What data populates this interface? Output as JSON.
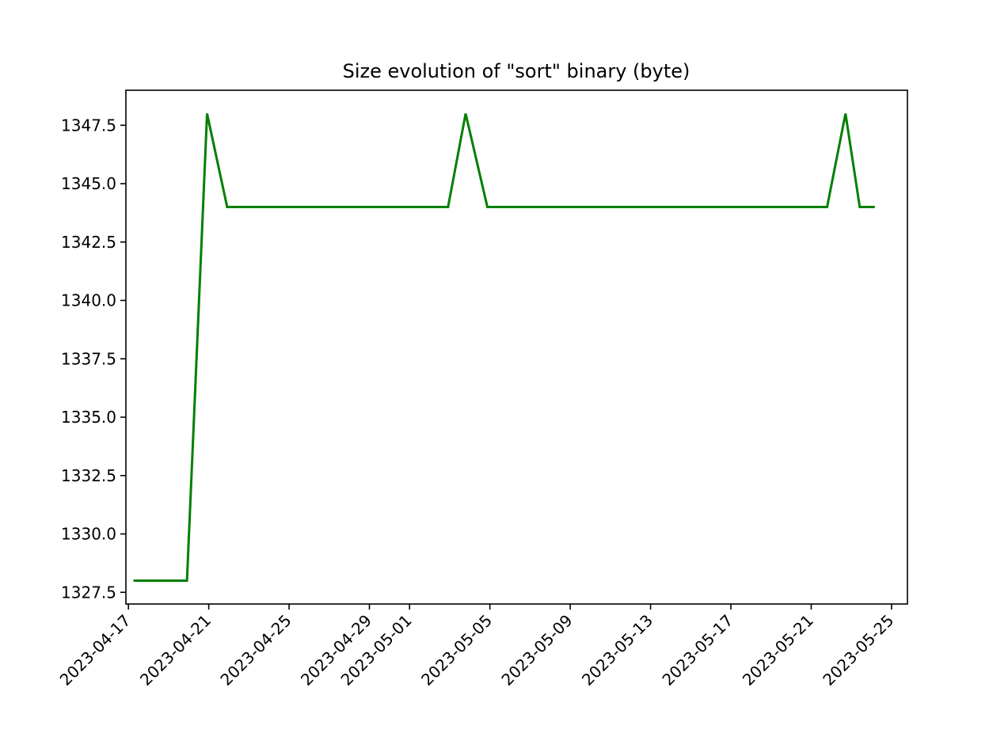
{
  "chart_data": {
    "type": "line",
    "title": "Size evolution of \"sort\" binary (byte)",
    "xlabel": "",
    "ylabel": "",
    "grid": false,
    "legend": "none",
    "x_axis": "date",
    "xlim": [
      "2023-04-16T21:00",
      "2023-05-25T19:00"
    ],
    "ylim": [
      1327.0,
      1349.0
    ],
    "x_ticks": [
      "2023-04-17",
      "2023-04-21",
      "2023-04-25",
      "2023-04-29",
      "2023-05-01",
      "2023-05-05",
      "2023-05-09",
      "2023-05-13",
      "2023-05-17",
      "2023-05-21",
      "2023-05-25"
    ],
    "y_ticks": [
      "1327.5",
      "1330.0",
      "1332.5",
      "1335.0",
      "1337.5",
      "1340.0",
      "1342.5",
      "1345.0",
      "1347.5"
    ],
    "series": [
      {
        "color": "#008000",
        "points": [
          {
            "x": "2023-04-17T06:00",
            "y": 1328
          },
          {
            "x": "2023-04-19T22:00",
            "y": 1328
          },
          {
            "x": "2023-04-20T22:00",
            "y": 1348
          },
          {
            "x": "2023-04-21T22:00",
            "y": 1344
          },
          {
            "x": "2023-05-02T22:00",
            "y": 1344
          },
          {
            "x": "2023-05-03T19:00",
            "y": 1348
          },
          {
            "x": "2023-05-04T21:00",
            "y": 1344
          },
          {
            "x": "2023-05-21T19:00",
            "y": 1344
          },
          {
            "x": "2023-05-22T17:00",
            "y": 1348
          },
          {
            "x": "2023-05-23T10:00",
            "y": 1344
          },
          {
            "x": "2023-05-24T04:00",
            "y": 1344
          }
        ]
      }
    ]
  }
}
